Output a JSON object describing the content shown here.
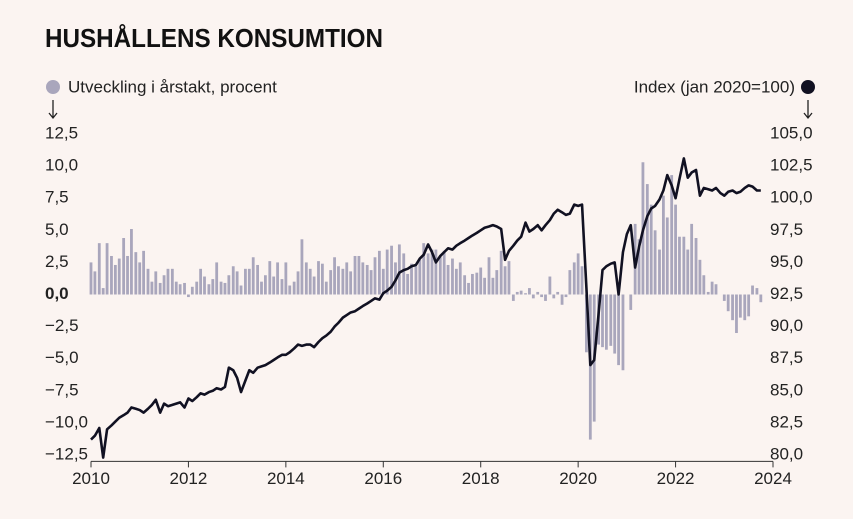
{
  "chart_data": {
    "type": "combo",
    "title": "HUSHÅLLENS KONSUMTION",
    "xlim": [
      2010,
      2024
    ],
    "xticks": [
      2010,
      2012,
      2014,
      2016,
      2018,
      2020,
      2022,
      2024
    ],
    "ylim": [
      -13,
      13
    ],
    "yticks": [
      {
        "value": 12.5,
        "label": "12,5"
      },
      {
        "value": 10,
        "label": "10,0"
      },
      {
        "value": 7.5,
        "label": "7,5"
      },
      {
        "value": 5,
        "label": "5,0"
      },
      {
        "value": 2.5,
        "label": "2,5"
      },
      {
        "value": 0,
        "label": "0,0"
      },
      {
        "value": -2.5,
        "label": "−2,5"
      },
      {
        "value": -5,
        "label": "−5,0"
      },
      {
        "value": -7.5,
        "label": "−7,5"
      },
      {
        "value": -10,
        "label": "−10,0"
      },
      {
        "value": -12.5,
        "label": "−12,5"
      }
    ],
    "y2lim": [
      79.5,
      105.5
    ],
    "y2ticks": [
      {
        "value": 105,
        "label": "105,0"
      },
      {
        "value": 102.5,
        "label": "102,5"
      },
      {
        "value": 100,
        "label": "100,0"
      },
      {
        "value": 97.5,
        "label": "97,5"
      },
      {
        "value": 95,
        "label": "95,0"
      },
      {
        "value": 92.5,
        "label": "92,5"
      },
      {
        "value": 90,
        "label": "90,0"
      },
      {
        "value": 87.5,
        "label": "87,5"
      },
      {
        "value": 85,
        "label": "85,0"
      },
      {
        "value": 82.5,
        "label": "82,5"
      },
      {
        "value": 80,
        "label": "80,0"
      }
    ],
    "x": [
      2010,
      2010.08,
      2010.17,
      2010.25,
      2010.33,
      2010.42,
      2010.5,
      2010.58,
      2010.67,
      2010.75,
      2010.83,
      2010.92,
      2011,
      2011.08,
      2011.17,
      2011.25,
      2011.33,
      2011.42,
      2011.5,
      2011.58,
      2011.67,
      2011.75,
      2011.83,
      2011.92,
      2012,
      2012.08,
      2012.17,
      2012.25,
      2012.33,
      2012.42,
      2012.5,
      2012.58,
      2012.67,
      2012.75,
      2012.83,
      2012.92,
      2013,
      2013.08,
      2013.17,
      2013.25,
      2013.33,
      2013.42,
      2013.5,
      2013.58,
      2013.67,
      2013.75,
      2013.83,
      2013.92,
      2014,
      2014.08,
      2014.17,
      2014.25,
      2014.33,
      2014.42,
      2014.5,
      2014.58,
      2014.67,
      2014.75,
      2014.83,
      2014.92,
      2015,
      2015.08,
      2015.17,
      2015.25,
      2015.33,
      2015.42,
      2015.5,
      2015.58,
      2015.67,
      2015.75,
      2015.83,
      2015.92,
      2016,
      2016.08,
      2016.17,
      2016.25,
      2016.33,
      2016.42,
      2016.5,
      2016.58,
      2016.67,
      2016.75,
      2016.83,
      2016.92,
      2017,
      2017.08,
      2017.17,
      2017.25,
      2017.33,
      2017.42,
      2017.5,
      2017.58,
      2017.67,
      2017.75,
      2017.83,
      2017.92,
      2018,
      2018.08,
      2018.17,
      2018.25,
      2018.33,
      2018.42,
      2018.5,
      2018.58,
      2018.67,
      2018.75,
      2018.83,
      2018.92,
      2019,
      2019.08,
      2019.17,
      2019.25,
      2019.33,
      2019.42,
      2019.5,
      2019.58,
      2019.67,
      2019.75,
      2019.83,
      2019.92,
      2020,
      2020.08,
      2020.17,
      2020.25,
      2020.33,
      2020.42,
      2020.5,
      2020.58,
      2020.67,
      2020.75,
      2020.83,
      2020.92,
      2021,
      2021.08,
      2021.17,
      2021.25,
      2021.33,
      2021.42,
      2021.5,
      2021.58,
      2021.67,
      2021.75,
      2021.83,
      2021.92,
      2022,
      2022.08,
      2022.17,
      2022.25,
      2022.33,
      2022.42,
      2022.5,
      2022.58,
      2022.67,
      2022.75,
      2022.83,
      2022.92,
      2023,
      2023.08,
      2023.17,
      2023.25,
      2023.33,
      2023.42,
      2023.5,
      2023.58,
      2023.67,
      2023.75
    ],
    "series": [
      {
        "name": "Utveckling i årstakt, procent",
        "type": "bar",
        "axis": "y",
        "color": "#a9a6bc",
        "values": [
          2.5,
          1.8,
          4.0,
          0.5,
          4.0,
          3.0,
          2.3,
          2.8,
          4.4,
          3.0,
          5.1,
          3.3,
          2.5,
          3.4,
          2.0,
          1.0,
          1.8,
          0.9,
          1.5,
          2.0,
          2.0,
          1.0,
          0.8,
          0.9,
          -0.2,
          0.6,
          1.0,
          2.0,
          1.4,
          0.8,
          1.2,
          2.5,
          1.0,
          0.9,
          1.5,
          2.2,
          1.8,
          0.7,
          2.0,
          2.0,
          2.9,
          2.3,
          1.0,
          1.5,
          2.6,
          1.4,
          2.5,
          1.2,
          2.5,
          0.7,
          1.0,
          1.8,
          4.3,
          2.5,
          2.0,
          1.4,
          2.6,
          2.4,
          1.0,
          1.9,
          2.9,
          2.2,
          2.0,
          2.5,
          1.8,
          3.0,
          3.0,
          2.5,
          2.3,
          1.9,
          2.9,
          3.4,
          2.0,
          3.5,
          3.8,
          2.5,
          3.9,
          3.2,
          1.6,
          2.4,
          2.2,
          2.7,
          4.0,
          3.2,
          3.5,
          3.5,
          3.0,
          3.4,
          2.3,
          2.8,
          2.0,
          2.5,
          1.5,
          0.9,
          1.6,
          1.7,
          2.1,
          1.3,
          2.9,
          1.3,
          1.9,
          3.4,
          2.2,
          2.6,
          -0.5,
          0.2,
          0.3,
          0.1,
          0.5,
          -0.3,
          0.2,
          -0.2,
          -0.5,
          1.4,
          -0.3,
          0.2,
          -0.8,
          -0.2,
          1.9,
          2.5,
          3.2,
          2.2,
          -4.5,
          -11.3,
          -9.9,
          -3.9,
          -4.1,
          -4.3,
          -4.0,
          -4.6,
          -5.5,
          -5.9,
          0.0,
          -1.2,
          5.5,
          4.3,
          10.3,
          8.6,
          7.0,
          5.0,
          3.5,
          7.7,
          6.0,
          9.3,
          7.0,
          4.5,
          4.5,
          3.5,
          5.5,
          4.4,
          2.7,
          1.5,
          0.2,
          1.0,
          0.8,
          0.0,
          -0.5,
          -1.3,
          -2.0,
          -3.0,
          -1.8,
          -2.0,
          -1.7,
          0.7,
          0.5,
          -0.6
        ]
      },
      {
        "name": "Index (jan 2020=100)",
        "type": "line",
        "axis": "y2",
        "color": "#111122",
        "values": [
          81.2,
          81.5,
          82.1,
          79.8,
          82.0,
          82.3,
          82.6,
          82.9,
          83.1,
          83.3,
          83.7,
          83.6,
          83.5,
          83.3,
          83.6,
          83.9,
          84.3,
          83.3,
          84.0,
          83.8,
          83.9,
          84.0,
          84.1,
          83.7,
          84.4,
          84.2,
          84.5,
          84.8,
          84.7,
          84.9,
          85.0,
          85.2,
          85.1,
          85.3,
          86.8,
          86.6,
          86.0,
          84.9,
          85.8,
          86.6,
          86.4,
          86.8,
          86.9,
          87.0,
          87.2,
          87.4,
          87.6,
          87.8,
          87.8,
          88.0,
          88.3,
          88.6,
          88.5,
          88.6,
          88.6,
          88.4,
          88.8,
          89.1,
          89.3,
          89.6,
          90.0,
          90.3,
          90.7,
          90.9,
          91.1,
          91.2,
          91.4,
          91.6,
          91.8,
          92.0,
          92.2,
          92.1,
          92.6,
          92.8,
          93.1,
          93.6,
          94.2,
          94.4,
          94.5,
          94.7,
          94.8,
          95.3,
          95.6,
          96.4,
          95.8,
          95.0,
          95.5,
          95.8,
          96.1,
          96.0,
          96.3,
          96.5,
          96.7,
          96.9,
          97.1,
          97.3,
          97.5,
          97.7,
          97.8,
          97.9,
          97.8,
          97.6,
          95.2,
          95.9,
          96.3,
          96.7,
          97.0,
          98.1,
          97.4,
          97.6,
          97.9,
          97.5,
          97.9,
          98.3,
          98.8,
          99.1,
          98.9,
          98.7,
          98.8,
          99.5,
          99.4,
          99.5,
          93.0,
          87.0,
          87.4,
          91.0,
          94.4,
          94.7,
          94.9,
          95.0,
          92.5,
          95.8,
          97.2,
          97.9,
          94.6,
          96.2,
          97.5,
          98.6,
          99.2,
          99.4,
          99.9,
          100.6,
          101.8,
          101.0,
          100.0,
          101.5,
          103.1,
          101.6,
          102.0,
          102.2,
          100.2,
          100.8,
          100.7,
          100.6,
          100.8,
          100.4,
          100.2,
          100.5,
          100.6,
          100.4,
          100.5,
          100.8,
          101.0,
          100.9,
          100.6,
          100.6
        ]
      }
    ]
  }
}
